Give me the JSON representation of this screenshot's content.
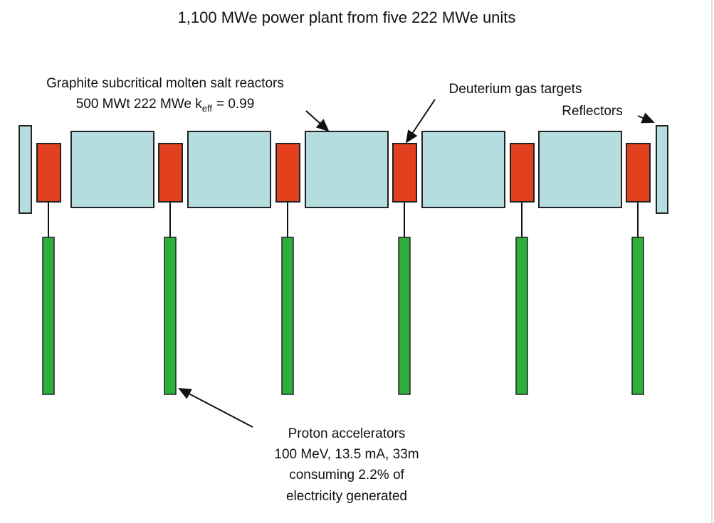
{
  "title": "1,100 MWe power plant from five 222 MWe units",
  "reactors_label": {
    "line1": "Graphite subcritical molten salt reactors",
    "line2": "500 MWt 222 MWe k",
    "subscript": "eff",
    "line2_end": "= 0.99"
  },
  "targets_label": "Deuterium gas targets",
  "reflectors_label": "Reflectors",
  "accelerators_label": [
    "Proton accelerators",
    "100 MeV, 13.5 mA, 33m",
    "consuming 2.2% of",
    "electricity generated"
  ]
}
